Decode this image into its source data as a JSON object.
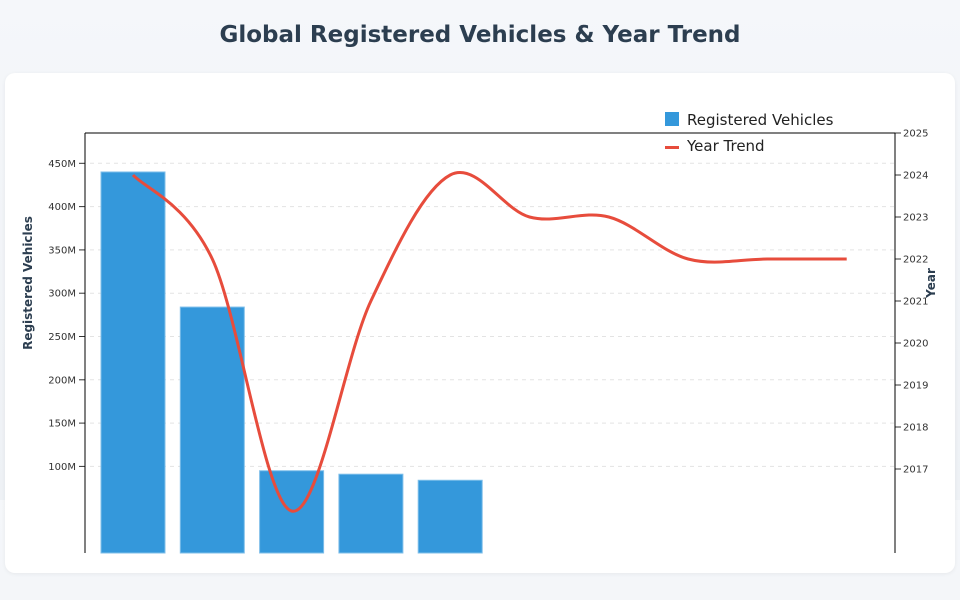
{
  "title": "Global Registered Vehicles & Year Trend",
  "chart_data": {
    "type": "bar+line",
    "title": "Global Registered Vehicles & Year Trend",
    "ylabel": "Registered Vehicles",
    "y2label": "Year",
    "ylim": [
      0,
      485000000
    ],
    "y2lim": [
      2015,
      2025
    ],
    "yticks": [
      "100M",
      "150M",
      "200M",
      "250M",
      "300M",
      "350M",
      "400M",
      "450M"
    ],
    "ytick_values": [
      100000000,
      150000000,
      200000000,
      250000000,
      300000000,
      350000000,
      400000000,
      450000000
    ],
    "y2ticks": [
      "2017",
      "2018",
      "2019",
      "2020",
      "2021",
      "2022",
      "2023",
      "2024",
      "2025"
    ],
    "y2tick_values": [
      2017,
      2018,
      2019,
      2020,
      2021,
      2022,
      2023,
      2024,
      2025
    ],
    "grid": true,
    "legend_position": "top-right",
    "series": [
      {
        "name": "Registered Vehicles",
        "type": "bar",
        "color": "#3498db",
        "values": [
          440000000,
          284000000,
          95000000,
          91000000,
          84000000,
          null,
          null,
          null,
          null,
          null
        ]
      },
      {
        "name": "Year Trend",
        "type": "line",
        "color": "#e74c3c",
        "values": [
          2024,
          2022,
          2016,
          2021,
          2024,
          2023,
          2023,
          2022,
          2022,
          2022
        ]
      }
    ]
  }
}
